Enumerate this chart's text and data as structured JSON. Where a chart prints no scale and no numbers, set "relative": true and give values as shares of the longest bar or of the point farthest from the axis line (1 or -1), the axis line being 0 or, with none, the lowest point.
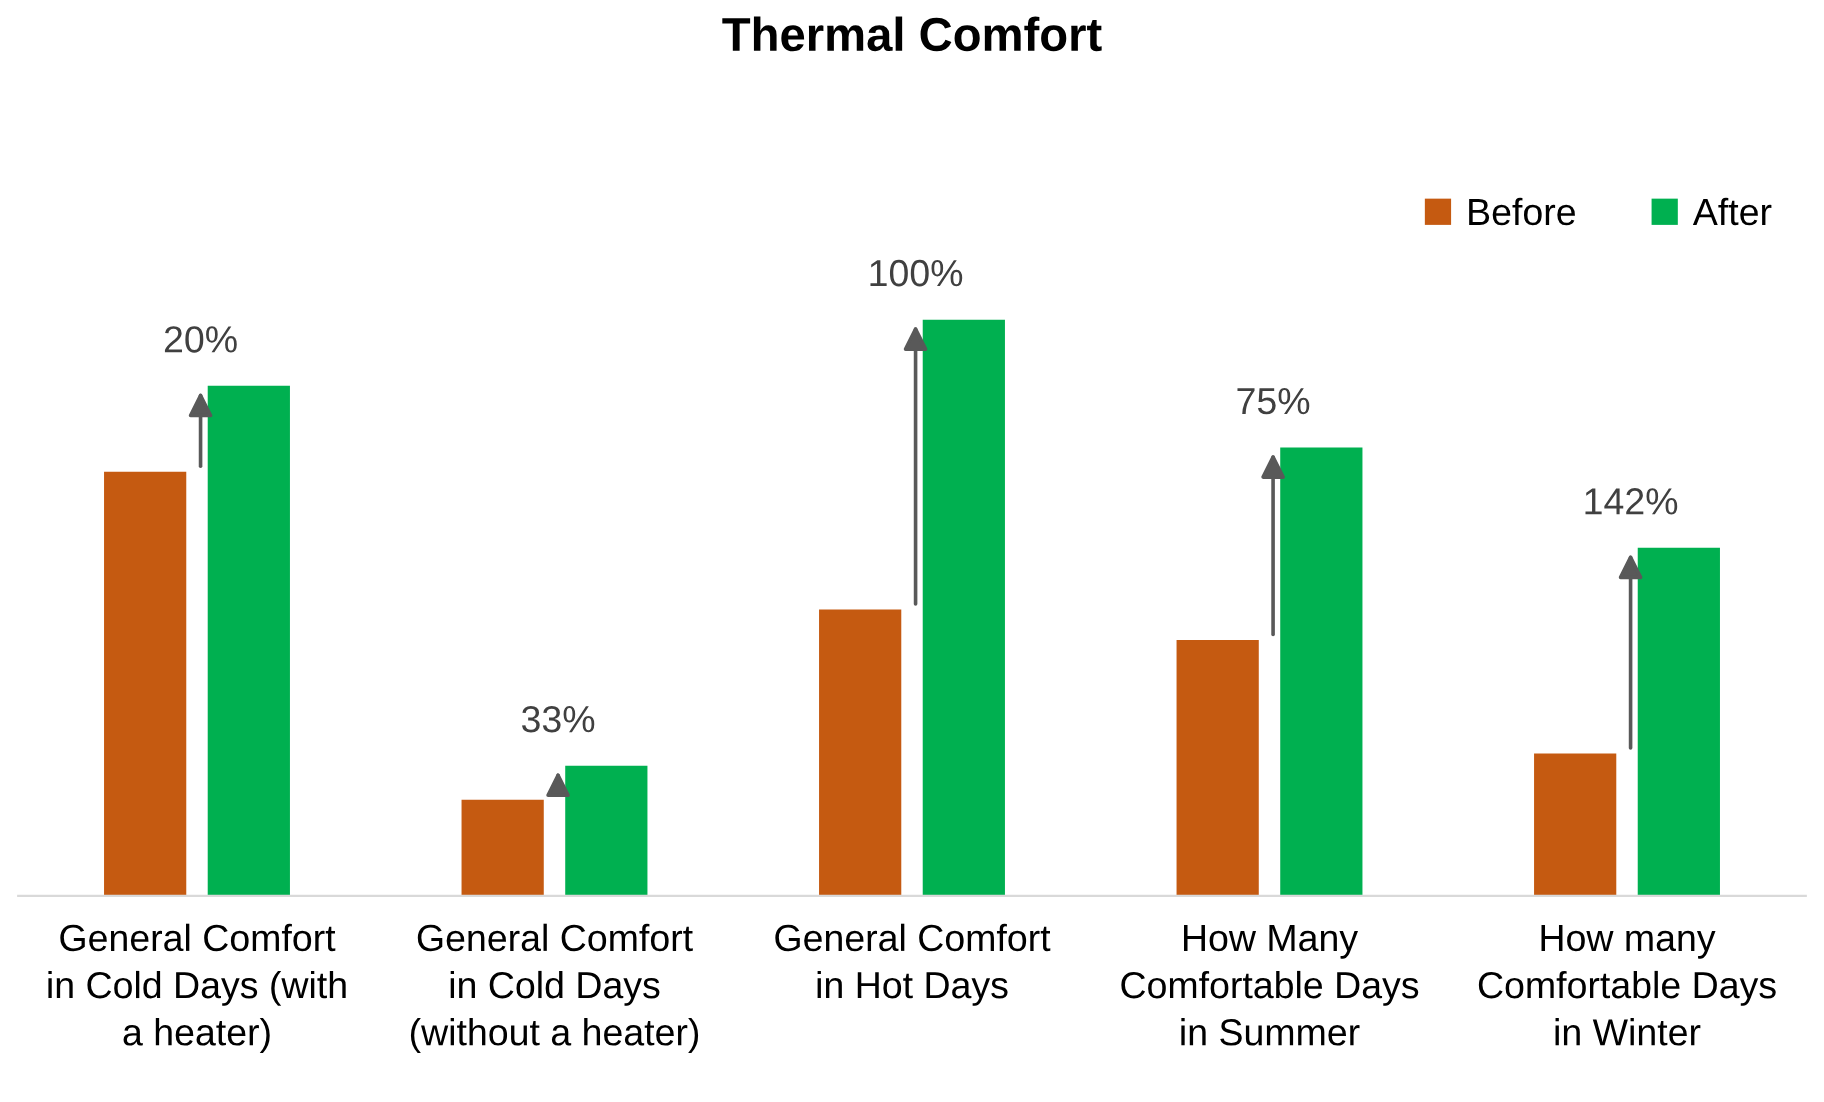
{
  "chart_data": {
    "type": "bar",
    "title": "Thermal Comfort",
    "relative": true,
    "categories": [
      "General Comfort\nin Cold Days (with\na heater)",
      "General Comfort\nin Cold Days\n(without a heater)",
      "General Comfort\nin Hot Days",
      "How Many\nComfortable Days\nin Summer",
      "How many\nComfortable Days\nin Winter"
    ],
    "series": [
      {
        "name": "Before",
        "color": "#c55a11",
        "values": [
          0.736,
          0.167,
          0.497,
          0.444,
          0.247
        ]
      },
      {
        "name": "After",
        "color": "#00b050",
        "values": [
          0.885,
          0.226,
          1,
          0.778,
          0.604
        ]
      }
    ],
    "annotations": [
      "20%",
      "33%",
      "100%",
      "75%",
      "142%"
    ],
    "legend": "top right",
    "grid": false
  }
}
